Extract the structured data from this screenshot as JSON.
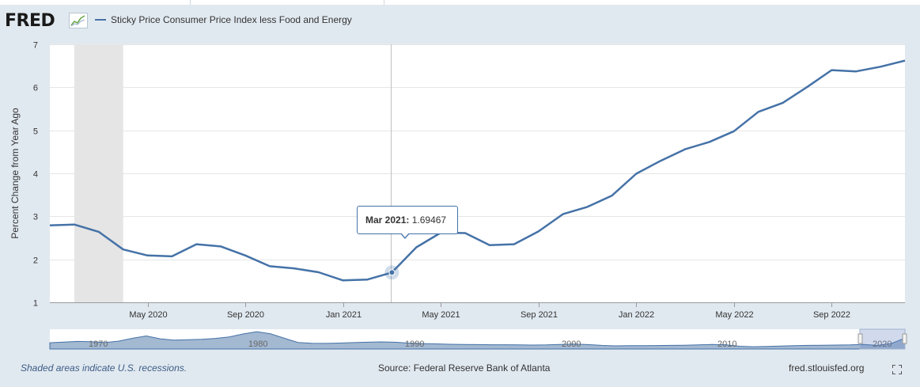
{
  "header": {
    "logo_text": "FRED",
    "logo_icon": "chart-line-icon",
    "series_label": "Sticky Price Consumer Price Index less Food and Energy"
  },
  "colors": {
    "series": "#4572a7",
    "recession": "#e5e5e5",
    "grid": "#e6e6e6",
    "frame": "#e1e9f0",
    "navigator_fill": "#a3b8d1",
    "navigator_line": "#4572a7"
  },
  "tooltip": {
    "date": "Mar 2021:",
    "value": "1.69467"
  },
  "footer": {
    "recession_note": "Shaded areas indicate U.S. recessions.",
    "source": "Source: Federal Reserve Bank of Atlanta",
    "site": "fred.stlouisfed.org",
    "fullscreen_icon": "fullscreen-icon"
  },
  "chart_data": {
    "type": "line",
    "ylabel": "Percent Change from Year Ago",
    "ylim": [
      1,
      7
    ],
    "yticks": [
      "1",
      "2",
      "3",
      "4",
      "5",
      "6",
      "7"
    ],
    "xtick_labels": [
      "May 2020",
      "Sep 2020",
      "Jan 2021",
      "May 2021",
      "Sep 2021",
      "Jan 2022",
      "May 2022",
      "Sep 2022"
    ],
    "x_range": [
      "2020-01",
      "2022-12"
    ],
    "recessions": [
      [
        "2020-02",
        "2020-04"
      ]
    ],
    "grid": true,
    "series": [
      {
        "name": "Sticky Price Consumer Price Index less Food and Energy",
        "x": [
          "2020-01",
          "2020-02",
          "2020-03",
          "2020-04",
          "2020-05",
          "2020-06",
          "2020-07",
          "2020-08",
          "2020-09",
          "2020-10",
          "2020-11",
          "2020-12",
          "2021-01",
          "2021-02",
          "2021-03",
          "2021-04",
          "2021-05",
          "2021-06",
          "2021-07",
          "2021-08",
          "2021-09",
          "2021-10",
          "2021-11",
          "2021-12",
          "2022-01",
          "2022-02",
          "2022-03",
          "2022-04",
          "2022-05",
          "2022-06",
          "2022-07",
          "2022-08",
          "2022-09",
          "2022-10",
          "2022-11",
          "2022-12"
        ],
        "values": [
          2.79,
          2.81,
          2.64,
          2.23,
          2.09,
          2.07,
          2.35,
          2.3,
          2.09,
          1.84,
          1.79,
          1.7,
          1.51,
          1.53,
          1.69467,
          2.28,
          2.62,
          2.61,
          2.33,
          2.35,
          2.65,
          3.05,
          3.22,
          3.48,
          3.99,
          4.29,
          4.56,
          4.73,
          4.98,
          5.43,
          5.64,
          6.01,
          6.4,
          6.37,
          6.48,
          6.62
        ]
      }
    ],
    "navigator": {
      "xtick_labels": [
        "1970",
        "1980",
        "1990",
        "2000",
        "2010",
        "2020"
      ],
      "values": [
        3.8,
        4.2,
        4.6,
        4.4,
        3.9,
        4.8,
        6.5,
        7.9,
        6.2,
        5.4,
        5.6,
        5.9,
        6.4,
        7.3,
        9.1,
        10.5,
        9.2,
        6.5,
        4.0,
        3.5,
        3.4,
        3.6,
        3.9,
        4.1,
        4.3,
        4.1,
        3.6,
        3.3,
        3.1,
        2.9,
        2.8,
        2.7,
        2.6,
        2.6,
        2.5,
        2.4,
        2.5,
        2.8,
        3.0,
        2.7,
        2.2,
        1.9,
        2.0,
        2.0,
        2.1,
        2.2,
        2.3,
        2.5,
        2.8,
        2.6,
        1.7,
        1.4,
        1.6,
        1.8,
        2.0,
        2.2,
        2.3,
        2.4,
        2.5,
        2.8,
        2.2,
        3.3,
        6.6
      ]
    }
  }
}
